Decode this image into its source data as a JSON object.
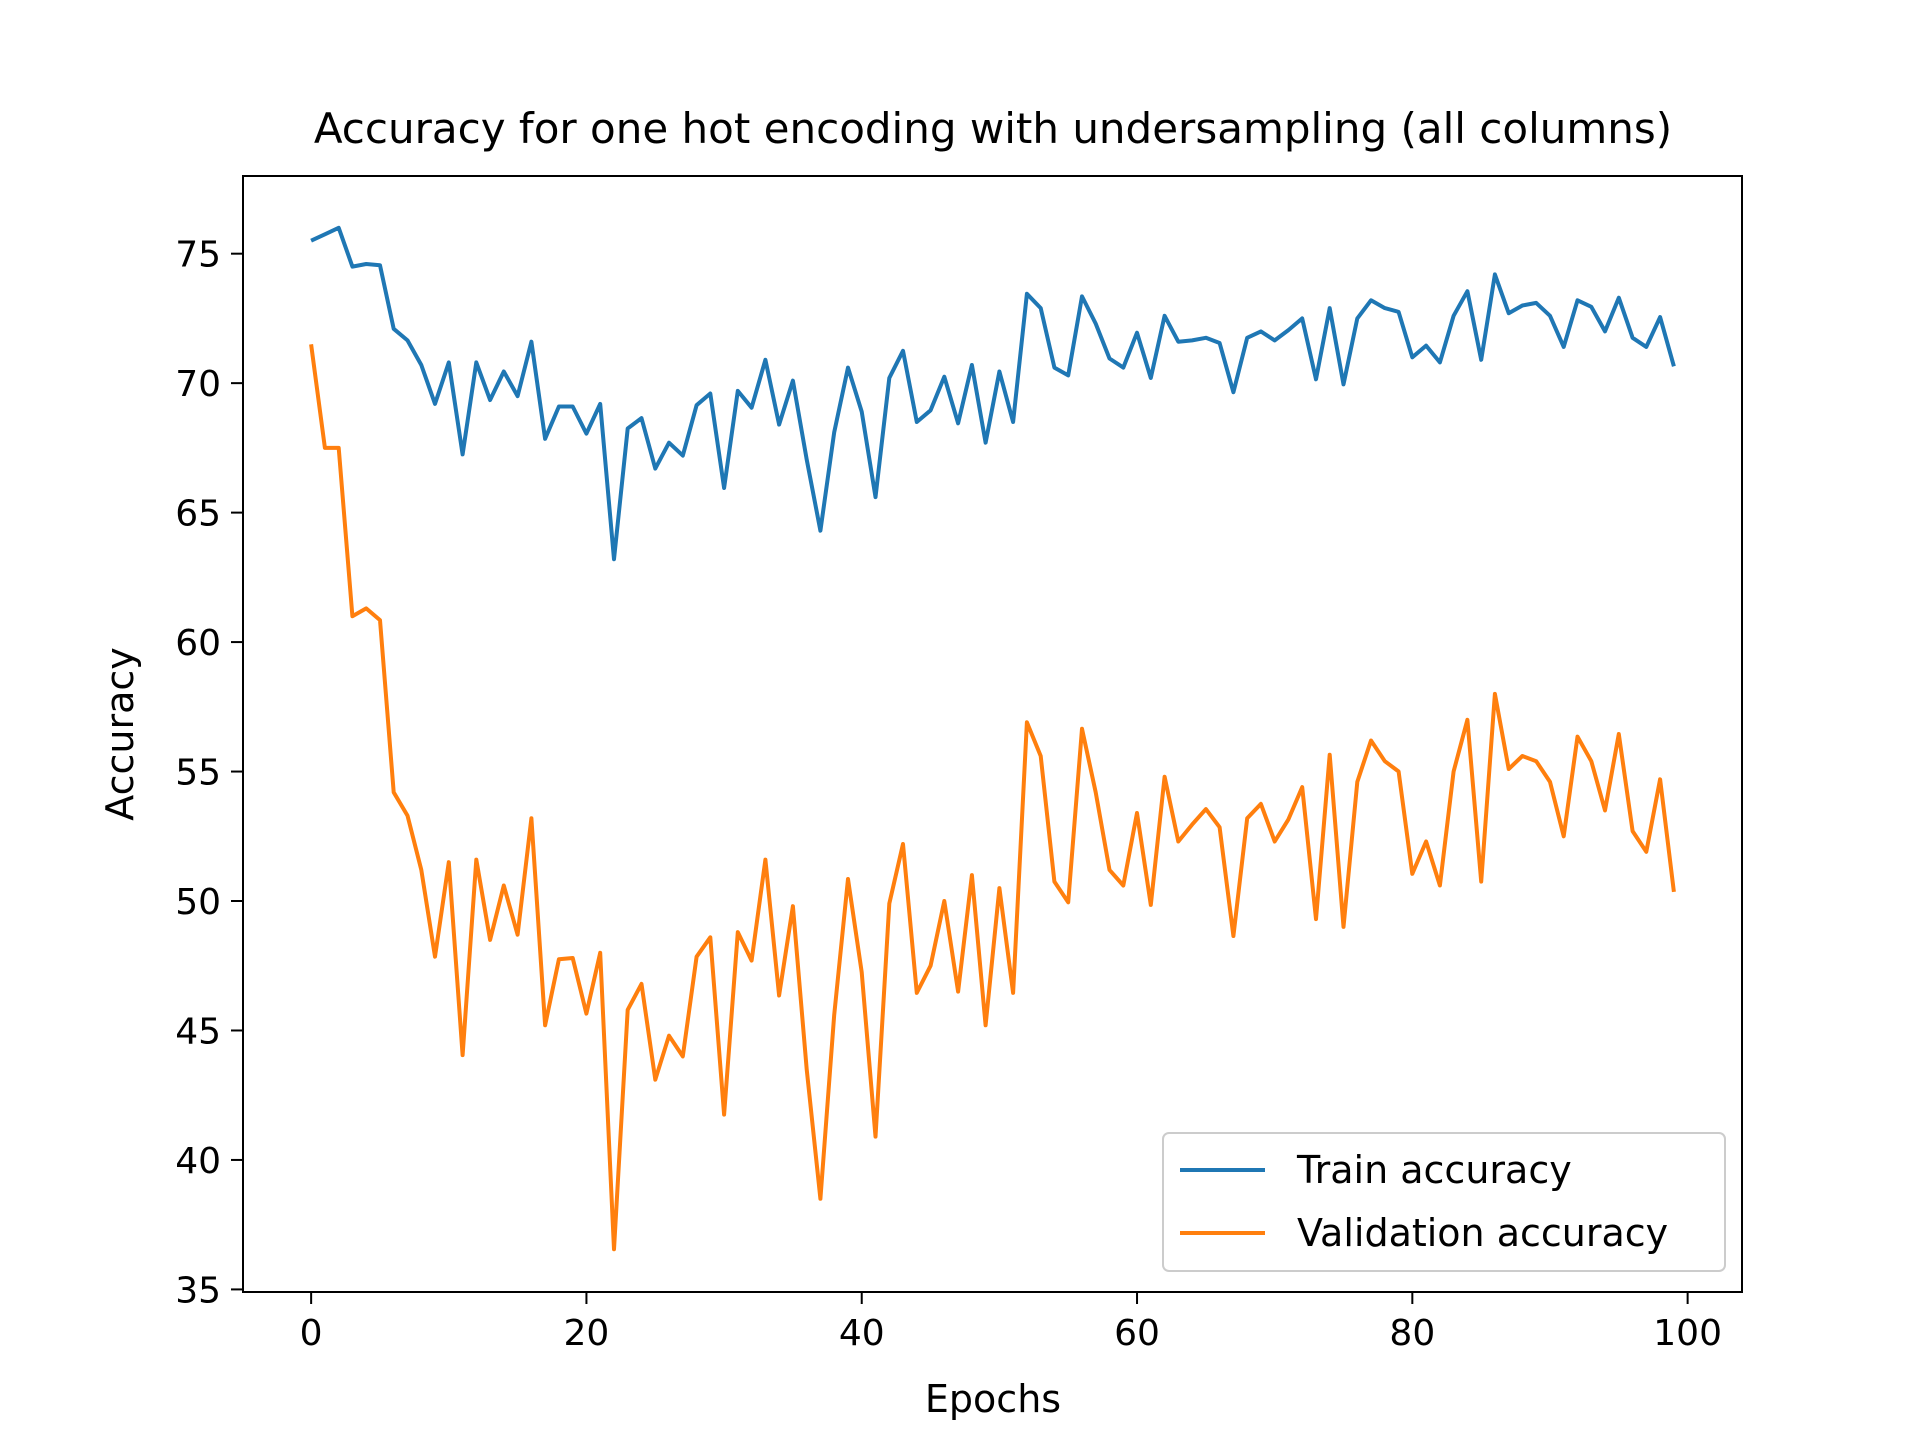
{
  "colors": {
    "train": "#1f77b4",
    "validation": "#ff7f0e"
  },
  "chart_data": {
    "type": "line",
    "title": "Accuracy for one hot encoding with undersampling (all columns)",
    "xlabel": "Epochs",
    "ylabel": "Accuracy",
    "xlim": [
      -4.95,
      103.95
    ],
    "ylim": [
      34.9,
      78.0
    ],
    "xticks": [
      0,
      20,
      40,
      60,
      80,
      100
    ],
    "yticks": [
      35,
      40,
      45,
      50,
      55,
      60,
      65,
      70,
      75
    ],
    "grid": false,
    "legend_position": "lower-right",
    "x": [
      0,
      1,
      2,
      3,
      4,
      5,
      6,
      7,
      8,
      9,
      10,
      11,
      12,
      13,
      14,
      15,
      16,
      17,
      18,
      19,
      20,
      21,
      22,
      23,
      24,
      25,
      26,
      27,
      28,
      29,
      30,
      31,
      32,
      33,
      34,
      35,
      36,
      37,
      38,
      39,
      40,
      41,
      42,
      43,
      44,
      45,
      46,
      47,
      48,
      49,
      50,
      51,
      52,
      53,
      54,
      55,
      56,
      57,
      58,
      59,
      60,
      61,
      62,
      63,
      64,
      65,
      66,
      67,
      68,
      69,
      70,
      71,
      72,
      73,
      74,
      75,
      76,
      77,
      78,
      79,
      80,
      81,
      82,
      83,
      84,
      85,
      86,
      87,
      88,
      89,
      90,
      91,
      92,
      93,
      94,
      95,
      96,
      97,
      98,
      99
    ],
    "series": [
      {
        "name": "Train accuracy",
        "color": "#1f77b4",
        "values": [
          75.5,
          75.75,
          76.0,
          74.5,
          74.6,
          74.55,
          72.1,
          71.65,
          70.7,
          69.2,
          70.8,
          67.25,
          70.8,
          69.35,
          70.45,
          69.5,
          71.6,
          67.85,
          69.1,
          69.1,
          68.05,
          69.2,
          63.2,
          68.25,
          68.65,
          66.7,
          67.7,
          67.2,
          69.15,
          69.6,
          65.95,
          69.7,
          69.05,
          70.9,
          68.4,
          70.1,
          67.05,
          64.3,
          68.1,
          70.6,
          68.9,
          65.6,
          70.2,
          71.25,
          68.5,
          68.95,
          70.25,
          68.45,
          70.7,
          67.7,
          70.45,
          68.5,
          73.45,
          72.9,
          70.6,
          70.3,
          73.35,
          72.3,
          70.95,
          70.6,
          71.95,
          70.2,
          72.6,
          71.6,
          71.65,
          71.75,
          71.55,
          69.65,
          71.75,
          72.0,
          71.65,
          72.05,
          72.5,
          70.15,
          72.9,
          69.95,
          72.5,
          73.2,
          72.9,
          72.75,
          71.0,
          71.45,
          70.8,
          72.6,
          73.55,
          70.9,
          74.2,
          72.7,
          73.0,
          73.1,
          72.6,
          71.4,
          73.2,
          72.95,
          72.0,
          73.3,
          71.75,
          71.4,
          72.55,
          70.65
        ]
      },
      {
        "name": "Validation accuracy",
        "color": "#ff7f0e",
        "values": [
          71.5,
          67.5,
          67.5,
          61.0,
          61.3,
          60.85,
          54.2,
          53.3,
          51.2,
          47.85,
          51.5,
          44.05,
          51.6,
          48.5,
          50.6,
          48.7,
          53.2,
          45.2,
          47.75,
          47.8,
          45.65,
          48.0,
          36.55,
          45.8,
          46.8,
          43.1,
          44.8,
          44.0,
          47.85,
          48.6,
          41.75,
          48.8,
          47.7,
          51.6,
          46.35,
          49.8,
          43.5,
          38.5,
          45.6,
          50.85,
          47.25,
          40.9,
          49.9,
          52.2,
          46.45,
          47.5,
          50.0,
          46.5,
          51.0,
          45.2,
          50.5,
          46.45,
          56.9,
          55.6,
          50.75,
          49.95,
          56.65,
          54.2,
          51.2,
          50.6,
          53.4,
          49.85,
          54.8,
          52.3,
          52.95,
          53.55,
          52.85,
          48.65,
          53.2,
          53.75,
          52.3,
          53.15,
          54.4,
          49.3,
          55.65,
          49.0,
          54.6,
          56.2,
          55.4,
          55.0,
          51.05,
          52.3,
          50.6,
          55.0,
          57.0,
          50.75,
          58.0,
          55.1,
          55.6,
          55.4,
          54.6,
          52.5,
          56.35,
          55.4,
          53.5,
          56.45,
          52.7,
          51.9,
          54.7,
          50.35
        ]
      }
    ]
  }
}
